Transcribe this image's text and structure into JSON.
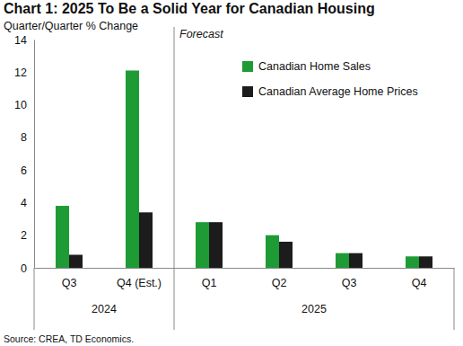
{
  "chart_data": {
    "type": "bar",
    "title": "Chart 1: 2025 To Be a Solid Year for Canadian Housing",
    "subtitle": "Quarter/Quarter % Change",
    "categories": [
      "Q3",
      "Q4 (Est.)",
      "Q1",
      "Q2",
      "Q3",
      "Q4"
    ],
    "category_groups": [
      {
        "name": "2024",
        "size": 2
      },
      {
        "name": "2025",
        "size": 4
      }
    ],
    "annotations": [
      {
        "text": "Forecast"
      }
    ],
    "series": [
      {
        "name": "Canadian Home Sales",
        "color": "#1e9b34",
        "values": [
          3.8,
          12.1,
          2.8,
          2.0,
          0.9,
          0.7
        ]
      },
      {
        "name": "Canadian Average Home Prices",
        "color": "#1c1c1c",
        "values": [
          0.8,
          3.4,
          2.8,
          1.6,
          0.9,
          0.7
        ]
      }
    ],
    "ylim": [
      0,
      14
    ],
    "yticks": [
      0,
      2,
      4,
      6,
      8,
      10,
      12,
      14
    ],
    "grid": false,
    "legend": "upper right",
    "source": "Source: CREA, TD Economics."
  }
}
